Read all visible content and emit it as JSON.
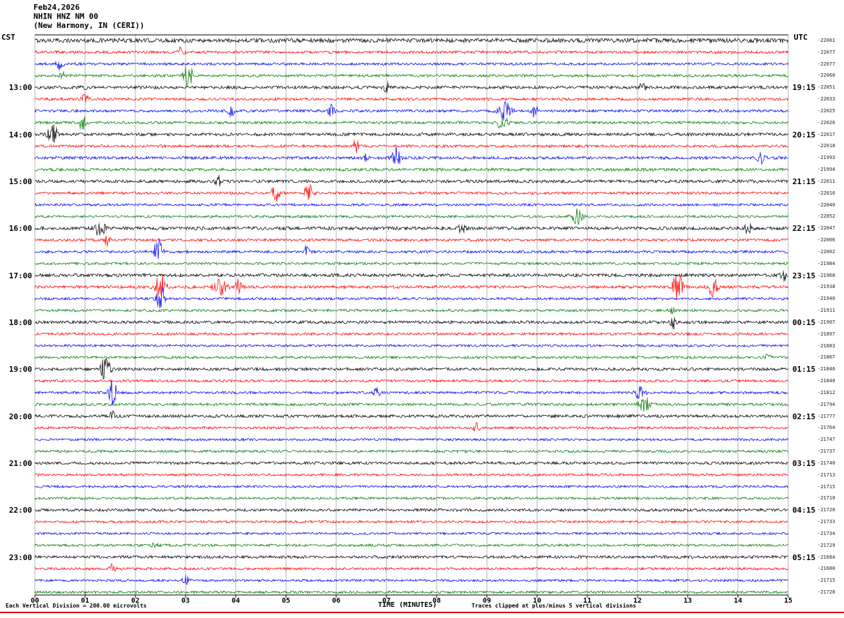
{
  "header": {
    "date": "Feb24,2026",
    "station": "NHIN HNZ NM 00",
    "location": "(New Harmony, IN (CERI))"
  },
  "axes": {
    "left_timezone": "CST",
    "right_timezone": "UTC",
    "x_title": "TIME (MINUTES)"
  },
  "footer": {
    "scale_note": "Each Vertical Division =  200.00 microvolts",
    "clip_note": "Traces clipped at plus/minus 5 vertical divisions"
  },
  "chart_data": {
    "type": "line",
    "subtype": "helicorder-seismogram",
    "title": "NHIN HNZ NM 00 (New Harmony, IN (CERI)) Feb24,2026",
    "xlabel": "TIME (MINUTES)",
    "x_range_minutes": [
      0,
      15
    ],
    "minutes_per_row": 15,
    "grid": true,
    "x_ticks": [
      "00",
      "01",
      "02",
      "03",
      "04",
      "05",
      "06",
      "07",
      "08",
      "09",
      "10",
      "11",
      "12",
      "13",
      "14",
      "15"
    ],
    "color_cycle": [
      "black",
      "red",
      "blue",
      "green"
    ],
    "trace_colors": {
      "black": "#000000",
      "red": "#ff0000",
      "blue": "#0000ee",
      "green": "#007a00"
    },
    "left_hour_labels": [
      {
        "row": 4,
        "label": "13:00"
      },
      {
        "row": 8,
        "label": "14:00"
      },
      {
        "row": 12,
        "label": "15:00"
      },
      {
        "row": 16,
        "label": "16:00"
      },
      {
        "row": 20,
        "label": "17:00"
      },
      {
        "row": 24,
        "label": "18:00"
      },
      {
        "row": 28,
        "label": "19:00"
      },
      {
        "row": 32,
        "label": "20:00"
      },
      {
        "row": 36,
        "label": "21:00"
      },
      {
        "row": 40,
        "label": "22:00"
      },
      {
        "row": 44,
        "label": "23:00"
      }
    ],
    "right_hour_labels": [
      {
        "row": 4,
        "label": "19:15"
      },
      {
        "row": 8,
        "label": "20:15"
      },
      {
        "row": 12,
        "label": "21:15"
      },
      {
        "row": 16,
        "label": "22:15"
      },
      {
        "row": 20,
        "label": "23:15"
      },
      {
        "row": 24,
        "label": "00:15"
      },
      {
        "row": 28,
        "label": "01:15"
      },
      {
        "row": 32,
        "label": "02:15"
      },
      {
        "row": 36,
        "label": "03:15"
      },
      {
        "row": 40,
        "label": "04:15"
      },
      {
        "row": 44,
        "label": "05:15"
      }
    ],
    "rows": [
      {
        "color": "black",
        "right_value": "-22081",
        "noise": 3.0
      },
      {
        "color": "red",
        "right_value": "-22077",
        "noise": 2.0
      },
      {
        "color": "blue",
        "right_value": "-22077",
        "noise": 1.8
      },
      {
        "color": "green",
        "right_value": "-22060",
        "noise": 1.9
      },
      {
        "color": "black",
        "right_value": "-22051",
        "noise": 2.2
      },
      {
        "color": "red",
        "right_value": "-22033",
        "noise": 1.9
      },
      {
        "color": "blue",
        "right_value": "-22025",
        "noise": 1.9
      },
      {
        "color": "green",
        "right_value": "-22026",
        "noise": 1.9
      },
      {
        "color": "black",
        "right_value": "-22017",
        "noise": 2.2
      },
      {
        "color": "red",
        "right_value": "-22018",
        "noise": 1.9
      },
      {
        "color": "blue",
        "right_value": "-21993",
        "noise": 2.1
      },
      {
        "color": "green",
        "right_value": "-21994",
        "noise": 2.1
      },
      {
        "color": "black",
        "right_value": "-22011",
        "noise": 2.2
      },
      {
        "color": "red",
        "right_value": "-22016",
        "noise": 1.9
      },
      {
        "color": "blue",
        "right_value": "-22040",
        "noise": 1.8
      },
      {
        "color": "green",
        "right_value": "-22052",
        "noise": 1.8
      },
      {
        "color": "black",
        "right_value": "-22047",
        "noise": 2.3
      },
      {
        "color": "red",
        "right_value": "-22006",
        "noise": 1.9
      },
      {
        "color": "blue",
        "right_value": "-22002",
        "noise": 1.9
      },
      {
        "color": "green",
        "right_value": "-21984",
        "noise": 1.8
      },
      {
        "color": "black",
        "right_value": "-21968",
        "noise": 2.3
      },
      {
        "color": "red",
        "right_value": "-21938",
        "noise": 2.1
      },
      {
        "color": "blue",
        "right_value": "-21940",
        "noise": 1.8
      },
      {
        "color": "green",
        "right_value": "-21911",
        "noise": 1.8
      },
      {
        "color": "black",
        "right_value": "-21907",
        "noise": 2.1
      },
      {
        "color": "red",
        "right_value": "-21897",
        "noise": 1.8
      },
      {
        "color": "blue",
        "right_value": "-21883",
        "noise": 1.7
      },
      {
        "color": "green",
        "right_value": "-21867",
        "noise": 1.8
      },
      {
        "color": "black",
        "right_value": "-21846",
        "noise": 2.1
      },
      {
        "color": "red",
        "right_value": "-21840",
        "noise": 1.8
      },
      {
        "color": "blue",
        "right_value": "-21812",
        "noise": 1.8
      },
      {
        "color": "green",
        "right_value": "-21794",
        "noise": 1.9
      },
      {
        "color": "black",
        "right_value": "-21777",
        "noise": 2.1
      },
      {
        "color": "red",
        "right_value": "-21764",
        "noise": 1.8
      },
      {
        "color": "blue",
        "right_value": "-21747",
        "noise": 1.7
      },
      {
        "color": "green",
        "right_value": "-21737",
        "noise": 1.8
      },
      {
        "color": "black",
        "right_value": "-21740",
        "noise": 2.0
      },
      {
        "color": "red",
        "right_value": "-21713",
        "noise": 1.7
      },
      {
        "color": "blue",
        "right_value": "-21715",
        "noise": 1.7
      },
      {
        "color": "green",
        "right_value": "-21710",
        "noise": 1.7
      },
      {
        "color": "black",
        "right_value": "-21720",
        "noise": 2.0
      },
      {
        "color": "red",
        "right_value": "-21733",
        "noise": 1.7
      },
      {
        "color": "blue",
        "right_value": "-21734",
        "noise": 1.7
      },
      {
        "color": "green",
        "right_value": "-21729",
        "noise": 1.8
      },
      {
        "color": "black",
        "right_value": "-21684",
        "noise": 2.0
      },
      {
        "color": "red",
        "right_value": "-21680",
        "noise": 1.8
      },
      {
        "color": "blue",
        "right_value": "-21715",
        "noise": 1.7
      },
      {
        "color": "green",
        "right_value": "-21728",
        "noise": 1.8
      }
    ],
    "events": [
      {
        "row": 1,
        "minute": 2.9,
        "amp": 6
      },
      {
        "row": 2,
        "minute": 0.5,
        "amp": 8
      },
      {
        "row": 3,
        "minute": 0.55,
        "amp": 5
      },
      {
        "row": 3,
        "minute": 3.05,
        "amp": 15,
        "w": 0.1
      },
      {
        "row": 4,
        "minute": 1.0,
        "amp": 5
      },
      {
        "row": 4,
        "minute": 7.0,
        "amp": 6
      },
      {
        "row": 4,
        "minute": 12.1,
        "amp": 6
      },
      {
        "row": 5,
        "minute": 1.0,
        "amp": 8
      },
      {
        "row": 6,
        "minute": 3.9,
        "amp": 8
      },
      {
        "row": 6,
        "minute": 5.9,
        "amp": 8
      },
      {
        "row": 6,
        "minute": 9.35,
        "amp": 15,
        "w": 0.12
      },
      {
        "row": 6,
        "minute": 9.95,
        "amp": 9
      },
      {
        "row": 7,
        "minute": 0.95,
        "amp": 14
      },
      {
        "row": 7,
        "minute": 9.3,
        "amp": 11,
        "w": 0.1
      },
      {
        "row": 8,
        "minute": 0.35,
        "amp": 20,
        "w": 0.08
      },
      {
        "row": 9,
        "minute": 6.4,
        "amp": 9
      },
      {
        "row": 10,
        "minute": 6.6,
        "amp": 6
      },
      {
        "row": 10,
        "minute": 7.2,
        "amp": 17,
        "w": 0.08
      },
      {
        "row": 10,
        "minute": 14.45,
        "amp": 8
      },
      {
        "row": 12,
        "minute": 3.65,
        "amp": 9
      },
      {
        "row": 13,
        "minute": 4.8,
        "amp": 12,
        "w": 0.08
      },
      {
        "row": 13,
        "minute": 5.45,
        "amp": 13,
        "w": 0.08
      },
      {
        "row": 15,
        "minute": 10.8,
        "amp": 10,
        "w": 0.1
      },
      {
        "row": 16,
        "minute": 1.3,
        "amp": 11,
        "w": 0.1
      },
      {
        "row": 16,
        "minute": 8.5,
        "amp": 7
      },
      {
        "row": 16,
        "minute": 14.2,
        "amp": 7
      },
      {
        "row": 17,
        "minute": 1.45,
        "amp": 9
      },
      {
        "row": 18,
        "minute": 2.45,
        "amp": 19,
        "w": 0.08
      },
      {
        "row": 18,
        "minute": 5.4,
        "amp": 8
      },
      {
        "row": 20,
        "minute": 14.9,
        "amp": 9
      },
      {
        "row": 21,
        "minute": 2.5,
        "amp": 21,
        "w": 0.1
      },
      {
        "row": 21,
        "minute": 3.7,
        "amp": 11,
        "w": 0.12
      },
      {
        "row": 21,
        "minute": 4.05,
        "amp": 9
      },
      {
        "row": 21,
        "minute": 12.8,
        "amp": 19,
        "w": 0.1
      },
      {
        "row": 21,
        "minute": 13.5,
        "amp": 13,
        "w": 0.09
      },
      {
        "row": 22,
        "minute": 2.5,
        "amp": 19,
        "w": 0.07
      },
      {
        "row": 23,
        "minute": 12.7,
        "amp": 6
      },
      {
        "row": 24,
        "minute": 12.7,
        "amp": 15,
        "w": 0.05
      },
      {
        "row": 27,
        "minute": 14.6,
        "amp": 6
      },
      {
        "row": 28,
        "minute": 1.4,
        "amp": 19,
        "w": 0.09
      },
      {
        "row": 30,
        "minute": 1.55,
        "amp": 21,
        "w": 0.07
      },
      {
        "row": 30,
        "minute": 6.8,
        "amp": 8
      },
      {
        "row": 30,
        "minute": 12.05,
        "amp": 10,
        "w": 0.09
      },
      {
        "row": 31,
        "minute": 12.15,
        "amp": 11,
        "w": 0.1
      },
      {
        "row": 32,
        "minute": 1.55,
        "amp": 8
      },
      {
        "row": 33,
        "minute": 8.8,
        "amp": 6
      },
      {
        "row": 43,
        "minute": 2.4,
        "amp": 5
      },
      {
        "row": 45,
        "minute": 1.55,
        "amp": 7
      },
      {
        "row": 46,
        "minute": 3.0,
        "amp": 6
      }
    ]
  }
}
